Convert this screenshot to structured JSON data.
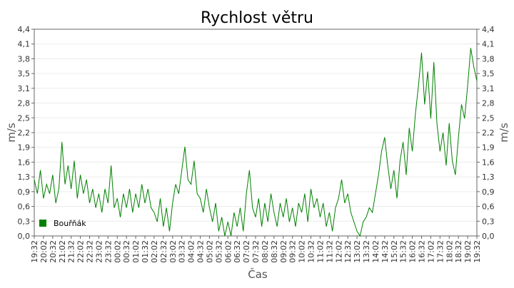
{
  "chart_data": {
    "type": "line",
    "title": "Rychlost větru",
    "x_label": "Čas",
    "y_label": "m/s",
    "legend": "lower left",
    "grid": true,
    "xlim": [
      0,
      1440
    ],
    "ylim": [
      0,
      4.4
    ],
    "yticks": [
      {
        "value": 0,
        "label": "0,0"
      },
      {
        "value": 0.3143,
        "label": "0,3"
      },
      {
        "value": 0.6286,
        "label": "0,6"
      },
      {
        "value": 0.9429,
        "label": "0,9"
      },
      {
        "value": 1.2571,
        "label": "1,3"
      },
      {
        "value": 1.5714,
        "label": "1,6"
      },
      {
        "value": 1.8857,
        "label": "1,9"
      },
      {
        "value": 2.2,
        "label": "2,2"
      },
      {
        "value": 2.5143,
        "label": "2,5"
      },
      {
        "value": 2.8286,
        "label": "2,8"
      },
      {
        "value": 3.1429,
        "label": "3,1"
      },
      {
        "value": 3.4571,
        "label": "3,5"
      },
      {
        "value": 3.7714,
        "label": "3,8"
      },
      {
        "value": 4.0857,
        "label": "4,1"
      },
      {
        "value": 4.4,
        "label": "4,4"
      }
    ],
    "xticks": [
      {
        "value": 0,
        "label": "19:32"
      },
      {
        "value": 30,
        "label": "20:02"
      },
      {
        "value": 60,
        "label": "20:32"
      },
      {
        "value": 90,
        "label": "21:02"
      },
      {
        "value": 120,
        "label": "21:32"
      },
      {
        "value": 150,
        "label": "22:02"
      },
      {
        "value": 180,
        "label": "22:32"
      },
      {
        "value": 210,
        "label": "23:02"
      },
      {
        "value": 240,
        "label": "23:32"
      },
      {
        "value": 270,
        "label": "00:02"
      },
      {
        "value": 300,
        "label": "00:32"
      },
      {
        "value": 330,
        "label": "01:02"
      },
      {
        "value": 360,
        "label": "01:32"
      },
      {
        "value": 390,
        "label": "02:02"
      },
      {
        "value": 420,
        "label": "02:32"
      },
      {
        "value": 450,
        "label": "03:02"
      },
      {
        "value": 480,
        "label": "03:32"
      },
      {
        "value": 510,
        "label": "04:02"
      },
      {
        "value": 540,
        "label": "04:32"
      },
      {
        "value": 570,
        "label": "05:02"
      },
      {
        "value": 600,
        "label": "05:32"
      },
      {
        "value": 630,
        "label": "06:02"
      },
      {
        "value": 660,
        "label": "06:32"
      },
      {
        "value": 690,
        "label": "07:02"
      },
      {
        "value": 720,
        "label": "07:32"
      },
      {
        "value": 750,
        "label": "08:02"
      },
      {
        "value": 780,
        "label": "08:32"
      },
      {
        "value": 810,
        "label": "09:02"
      },
      {
        "value": 840,
        "label": "09:32"
      },
      {
        "value": 870,
        "label": "10:02"
      },
      {
        "value": 900,
        "label": "10:32"
      },
      {
        "value": 930,
        "label": "11:02"
      },
      {
        "value": 960,
        "label": "11:32"
      },
      {
        "value": 990,
        "label": "12:02"
      },
      {
        "value": 1020,
        "label": "12:32"
      },
      {
        "value": 1050,
        "label": "13:02"
      },
      {
        "value": 1080,
        "label": "13:32"
      },
      {
        "value": 1110,
        "label": "14:02"
      },
      {
        "value": 1140,
        "label": "14:32"
      },
      {
        "value": 1170,
        "label": "15:02"
      },
      {
        "value": 1200,
        "label": "15:32"
      },
      {
        "value": 1230,
        "label": "16:02"
      },
      {
        "value": 1260,
        "label": "16:32"
      },
      {
        "value": 1290,
        "label": "17:02"
      },
      {
        "value": 1320,
        "label": "17:32"
      },
      {
        "value": 1350,
        "label": "18:02"
      },
      {
        "value": 1380,
        "label": "18:32"
      },
      {
        "value": 1410,
        "label": "19:02"
      },
      {
        "value": 1440,
        "label": "19:32"
      }
    ],
    "x": [
      0,
      10,
      20,
      30,
      40,
      50,
      60,
      70,
      80,
      90,
      100,
      110,
      120,
      130,
      140,
      150,
      160,
      170,
      180,
      190,
      200,
      210,
      220,
      230,
      240,
      250,
      260,
      270,
      280,
      290,
      300,
      310,
      320,
      330,
      340,
      350,
      360,
      370,
      380,
      390,
      400,
      410,
      420,
      430,
      440,
      450,
      460,
      470,
      480,
      490,
      500,
      510,
      520,
      530,
      540,
      550,
      560,
      570,
      580,
      590,
      600,
      610,
      620,
      630,
      640,
      650,
      660,
      670,
      680,
      690,
      700,
      710,
      720,
      730,
      740,
      750,
      760,
      770,
      780,
      790,
      800,
      810,
      820,
      830,
      840,
      850,
      860,
      870,
      880,
      890,
      900,
      910,
      920,
      930,
      940,
      950,
      960,
      970,
      980,
      990,
      1000,
      1010,
      1020,
      1030,
      1040,
      1050,
      1060,
      1070,
      1080,
      1090,
      1100,
      1110,
      1120,
      1130,
      1140,
      1150,
      1160,
      1170,
      1180,
      1190,
      1200,
      1210,
      1220,
      1230,
      1240,
      1250,
      1260,
      1270,
      1280,
      1290,
      1300,
      1310,
      1320,
      1330,
      1340,
      1350,
      1360,
      1370,
      1380,
      1390,
      1400,
      1410,
      1420,
      1430,
      1440
    ],
    "series": [
      {
        "name": "Bouřňák",
        "color": "#008000",
        "values": [
          1.2,
          0.9,
          1.4,
          0.8,
          1.1,
          0.9,
          1.3,
          0.7,
          1.0,
          2.0,
          1.1,
          1.5,
          1.0,
          1.6,
          0.8,
          1.3,
          0.9,
          1.2,
          0.7,
          1.0,
          0.6,
          0.9,
          0.5,
          1.0,
          0.7,
          1.5,
          0.6,
          0.8,
          0.4,
          0.9,
          0.6,
          1.0,
          0.5,
          0.9,
          0.6,
          1.1,
          0.7,
          1.0,
          0.6,
          0.5,
          0.3,
          0.8,
          0.2,
          0.6,
          0.1,
          0.7,
          1.1,
          0.9,
          1.4,
          1.9,
          1.2,
          1.1,
          1.6,
          0.9,
          0.8,
          0.5,
          1.0,
          0.6,
          0.3,
          0.7,
          0.1,
          0.4,
          0.0,
          0.3,
          0.0,
          0.5,
          0.2,
          0.6,
          0.1,
          0.9,
          1.4,
          0.6,
          0.4,
          0.8,
          0.2,
          0.7,
          0.3,
          0.9,
          0.5,
          0.2,
          0.7,
          0.4,
          0.8,
          0.3,
          0.6,
          0.2,
          0.7,
          0.5,
          0.9,
          0.3,
          1.0,
          0.6,
          0.8,
          0.4,
          0.7,
          0.2,
          0.5,
          0.1,
          0.6,
          0.8,
          1.2,
          0.7,
          0.9,
          0.5,
          0.3,
          0.1,
          0.0,
          0.3,
          0.4,
          0.6,
          0.5,
          0.9,
          1.3,
          1.8,
          2.1,
          1.5,
          1.0,
          1.4,
          0.8,
          1.6,
          2.0,
          1.3,
          2.3,
          1.8,
          2.6,
          3.2,
          3.9,
          2.8,
          3.5,
          2.5,
          3.7,
          2.4,
          1.8,
          2.2,
          1.5,
          2.4,
          1.6,
          1.3,
          2.1,
          2.8,
          2.5,
          3.2,
          4.0,
          3.6,
          3.3
        ]
      }
    ]
  }
}
